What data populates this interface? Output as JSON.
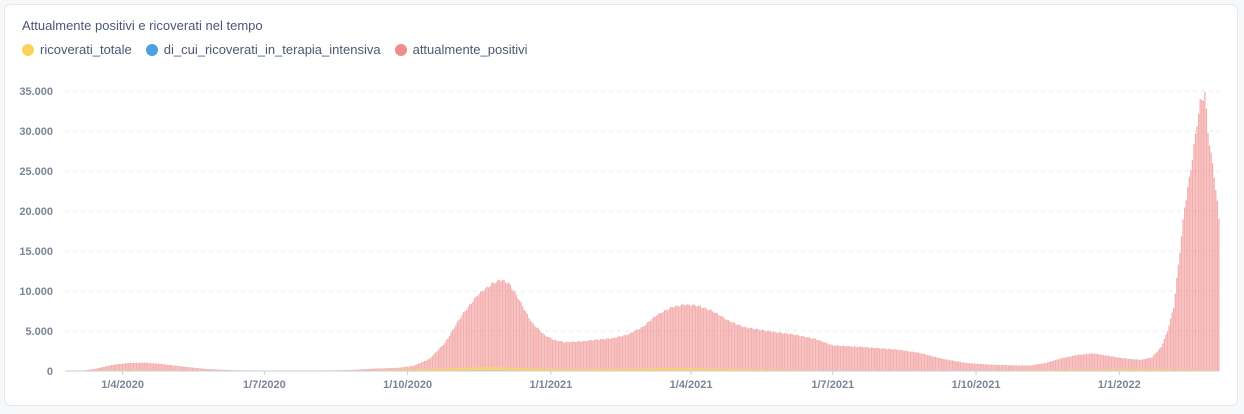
{
  "chart_data": {
    "type": "bar",
    "title": "Attualmente positivi e ricoverati nel tempo",
    "legend_position": "top-left",
    "grid": true,
    "series": [
      {
        "name": "ricoverati_totale",
        "color": "#f9d45c"
      },
      {
        "name": "di_cui_ricoverati_in_terapia_intensiva",
        "color": "#509ee3"
      },
      {
        "name": "attualmente_positivi",
        "color": "#ef8c8c"
      }
    ],
    "ylim": [
      0,
      37000
    ],
    "y_ticks": [
      "0",
      "5.000",
      "10.000",
      "15.000",
      "20.000",
      "25.000",
      "30.000",
      "35.000"
    ],
    "y_tick_values": [
      0,
      5000,
      10000,
      15000,
      20000,
      25000,
      30000,
      35000
    ],
    "x_range": [
      "2020-02-24",
      "2022-03-06"
    ],
    "x_ticks": [
      {
        "date": "2020-04-01",
        "label": "1/4/2020"
      },
      {
        "date": "2020-07-01",
        "label": "1/7/2020"
      },
      {
        "date": "2020-10-01",
        "label": "1/10/2020"
      },
      {
        "date": "2021-01-01",
        "label": "1/1/2021"
      },
      {
        "date": "2021-04-01",
        "label": "1/4/2021"
      },
      {
        "date": "2021-07-01",
        "label": "1/7/2021"
      },
      {
        "date": "2021-10-01",
        "label": "1/10/2021"
      },
      {
        "date": "2022-01-01",
        "label": "1/1/2022"
      }
    ],
    "attualmente_positivi_keypoints": [
      [
        "2020-02-24",
        0
      ],
      [
        "2020-03-05",
        0
      ],
      [
        "2020-03-15",
        300
      ],
      [
        "2020-03-25",
        750
      ],
      [
        "2020-04-05",
        1000
      ],
      [
        "2020-04-15",
        1050
      ],
      [
        "2020-04-25",
        900
      ],
      [
        "2020-05-10",
        550
      ],
      [
        "2020-05-25",
        250
      ],
      [
        "2020-06-10",
        100
      ],
      [
        "2020-07-01",
        50
      ],
      [
        "2020-08-01",
        40
      ],
      [
        "2020-08-25",
        120
      ],
      [
        "2020-09-10",
        300
      ],
      [
        "2020-09-25",
        400
      ],
      [
        "2020-10-05",
        650
      ],
      [
        "2020-10-15",
        1500
      ],
      [
        "2020-10-25",
        3500
      ],
      [
        "2020-11-05",
        7000
      ],
      [
        "2020-11-15",
        9500
      ],
      [
        "2020-11-25",
        11000
      ],
      [
        "2020-11-30",
        11400
      ],
      [
        "2020-12-05",
        11000
      ],
      [
        "2020-12-10",
        9500
      ],
      [
        "2020-12-20",
        6000
      ],
      [
        "2020-12-28",
        4500
      ],
      [
        "2021-01-03",
        3900
      ],
      [
        "2021-01-10",
        3600
      ],
      [
        "2021-01-20",
        3700
      ],
      [
        "2021-01-30",
        3900
      ],
      [
        "2021-02-10",
        4100
      ],
      [
        "2021-02-20",
        4600
      ],
      [
        "2021-03-01",
        5500
      ],
      [
        "2021-03-10",
        7000
      ],
      [
        "2021-03-20",
        8000
      ],
      [
        "2021-03-28",
        8300
      ],
      [
        "2021-04-05",
        8200
      ],
      [
        "2021-04-15",
        7500
      ],
      [
        "2021-04-25",
        6300
      ],
      [
        "2021-05-05",
        5500
      ],
      [
        "2021-05-20",
        5000
      ],
      [
        "2021-06-05",
        4600
      ],
      [
        "2021-06-20",
        4000
      ],
      [
        "2021-07-01",
        3200
      ],
      [
        "2021-07-20",
        3000
      ],
      [
        "2021-08-10",
        2700
      ],
      [
        "2021-08-25",
        2300
      ],
      [
        "2021-09-10",
        1500
      ],
      [
        "2021-09-25",
        1000
      ],
      [
        "2021-10-10",
        800
      ],
      [
        "2021-10-25",
        700
      ],
      [
        "2021-11-05",
        700
      ],
      [
        "2021-11-15",
        1000
      ],
      [
        "2021-11-25",
        1600
      ],
      [
        "2021-12-05",
        2000
      ],
      [
        "2021-12-15",
        2200
      ],
      [
        "2021-12-25",
        1900
      ],
      [
        "2021-12-31",
        1700
      ],
      [
        "2022-01-08",
        1500
      ],
      [
        "2022-01-15",
        1400
      ],
      [
        "2022-01-22",
        1700
      ],
      [
        "2022-01-28",
        3000
      ],
      [
        "2022-02-01",
        5000
      ],
      [
        "2022-02-05",
        8000
      ],
      [
        "2022-02-09",
        15000
      ],
      [
        "2022-02-12",
        20500
      ],
      [
        "2022-02-15",
        24000
      ],
      [
        "2022-02-18",
        28000
      ],
      [
        "2022-02-20",
        31000
      ],
      [
        "2022-02-22",
        33500
      ],
      [
        "2022-02-25",
        34700
      ],
      [
        "2022-02-27",
        30000
      ],
      [
        "2022-03-01",
        27000
      ],
      [
        "2022-03-03",
        24500
      ],
      [
        "2022-03-05",
        21000
      ],
      [
        "2022-03-06",
        19000
      ]
    ],
    "ricoverati_totale_keypoints": [
      [
        "2020-02-24",
        0
      ],
      [
        "2020-04-05",
        150
      ],
      [
        "2020-06-01",
        30
      ],
      [
        "2020-09-01",
        30
      ],
      [
        "2020-11-20",
        500
      ],
      [
        "2021-01-15",
        250
      ],
      [
        "2021-03-25",
        400
      ],
      [
        "2021-07-01",
        60
      ],
      [
        "2021-10-01",
        60
      ],
      [
        "2022-01-20",
        250
      ],
      [
        "2022-03-06",
        100
      ]
    ],
    "di_cui_ricoverati_in_terapia_intensiva_keypoints": [
      [
        "2020-02-24",
        0
      ],
      [
        "2020-04-05",
        30
      ],
      [
        "2020-06-01",
        5
      ],
      [
        "2020-09-01",
        5
      ],
      [
        "2020-11-20",
        80
      ],
      [
        "2021-01-15",
        40
      ],
      [
        "2021-03-25",
        60
      ],
      [
        "2021-07-01",
        10
      ],
      [
        "2021-10-01",
        10
      ],
      [
        "2022-01-20",
        30
      ],
      [
        "2022-03-06",
        15
      ]
    ]
  }
}
